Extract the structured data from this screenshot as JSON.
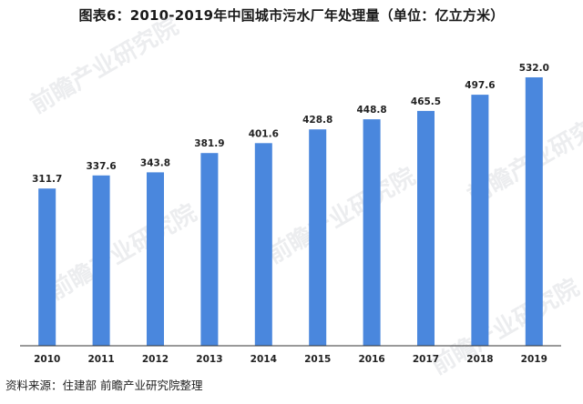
{
  "title": "图表6：2010-2019年中国城市污水厂年处理量（单位：亿立方米）",
  "source": "资料来源：住建部 前瞻产业研究院整理",
  "watermark": "前瞻产业研究院",
  "colors": {
    "bar": "#4a87dd",
    "axis": "#333333",
    "text": "#222222"
  },
  "chart_data": {
    "type": "bar",
    "title": "图表6：2010-2019年中国城市污水厂年处理量（单位：亿立方米）",
    "categories": [
      "2010",
      "2011",
      "2012",
      "2013",
      "2014",
      "2015",
      "2016",
      "2017",
      "2018",
      "2019"
    ],
    "values": [
      311.7,
      337.6,
      343.8,
      381.9,
      401.6,
      428.8,
      448.8,
      465.5,
      497.6,
      532.0
    ],
    "data_labels": [
      "311.7",
      "337.6",
      "343.8",
      "381.9",
      "401.6",
      "428.8",
      "448.8",
      "465.5",
      "497.6",
      "532.0"
    ],
    "xlabel": "",
    "ylabel": "",
    "ylim": [
      0,
      600
    ],
    "grid": false,
    "legend": "none"
  }
}
